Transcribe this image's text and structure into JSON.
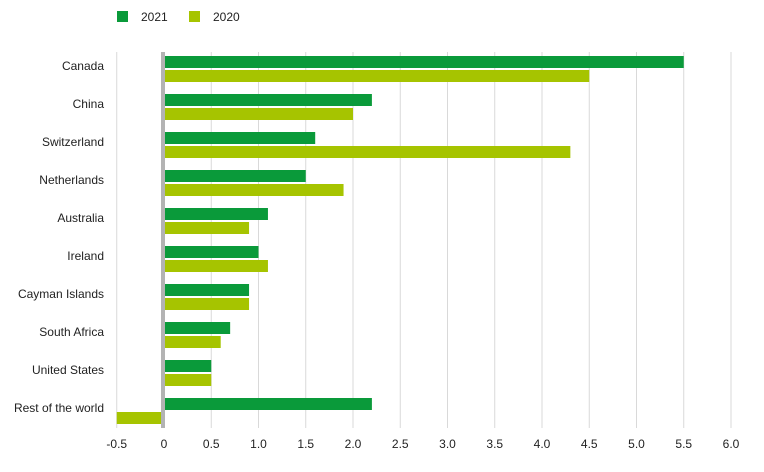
{
  "chart_data": {
    "type": "bar",
    "orientation": "horizontal",
    "categories": [
      "Canada",
      "China",
      "Switzerland",
      "Netherlands",
      "Australia",
      "Ireland",
      "Cayman Islands",
      "South Africa",
      "United States",
      "Rest of the world"
    ],
    "series": [
      {
        "name": "2021",
        "color": "#0a9a3a",
        "values": [
          5.5,
          2.2,
          1.6,
          1.5,
          1.1,
          1.0,
          0.9,
          0.7,
          0.5,
          2.2
        ]
      },
      {
        "name": "2020",
        "color": "#a6c400",
        "values": [
          4.5,
          2.0,
          4.3,
          1.9,
          0.9,
          1.1,
          0.9,
          0.6,
          0.5,
          -0.5
        ]
      }
    ],
    "x_ticks": [
      "-0.5",
      "0",
      "0.5",
      "1.0",
      "1.5",
      "2.0",
      "2.5",
      "3.0",
      "3.5",
      "4.0",
      "4.5",
      "5.0",
      "5.5",
      "6.0"
    ],
    "xlim": [
      -0.5,
      6.0
    ],
    "grid": "vertical",
    "legend_position": "top-left",
    "title": "",
    "xlabel": "",
    "ylabel": ""
  }
}
